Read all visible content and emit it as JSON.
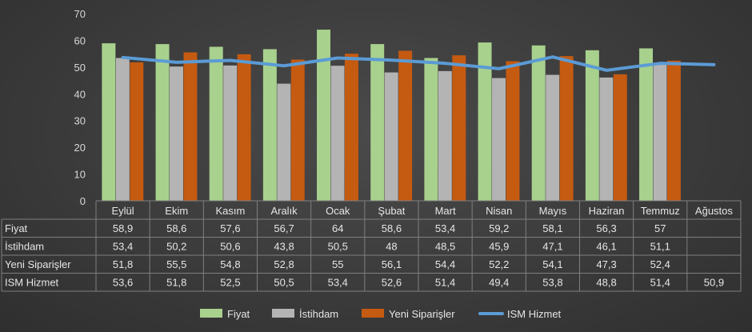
{
  "chart_data": {
    "type": "bar",
    "title": "",
    "xlabel": "",
    "ylabel": "",
    "ylim": [
      0,
      70
    ],
    "yticks": [
      0,
      10,
      20,
      30,
      40,
      50,
      60,
      70
    ],
    "grid": false,
    "legend_position": "bottom",
    "categories": [
      "Eylül",
      "Ekim",
      "Kasım",
      "Aralık",
      "Ocak",
      "Şubat",
      "Mart",
      "Nisan",
      "Mayıs",
      "Haziran",
      "Temmuz",
      "Ağustos"
    ],
    "series": [
      {
        "name": "Fiyat",
        "kind": "bar",
        "color": "#a9d18e",
        "values": [
          58.9,
          58.6,
          57.6,
          56.7,
          64,
          58.6,
          53.4,
          59.2,
          58.1,
          56.3,
          57,
          null
        ],
        "labels": [
          "58,9",
          "58,6",
          "57,6",
          "56,7",
          "64",
          "58,6",
          "53,4",
          "59,2",
          "58,1",
          "56,3",
          "57",
          ""
        ]
      },
      {
        "name": "İstihdam",
        "kind": "bar",
        "color": "#b4b4b4",
        "values": [
          53.4,
          50.2,
          50.6,
          43.8,
          50.5,
          48,
          48.5,
          45.9,
          47.1,
          46.1,
          51.1,
          null
        ],
        "labels": [
          "53,4",
          "50,2",
          "50,6",
          "43,8",
          "50,5",
          "48",
          "48,5",
          "45,9",
          "47,1",
          "46,1",
          "51,1",
          ""
        ]
      },
      {
        "name": "Yeni Siparişler",
        "kind": "bar",
        "color": "#c55a11",
        "values": [
          51.8,
          55.5,
          54.8,
          52.8,
          55,
          56.1,
          54.4,
          52.2,
          54.1,
          47.3,
          52.4,
          null
        ],
        "labels": [
          "51,8",
          "55,5",
          "54,8",
          "52,8",
          "55",
          "56,1",
          "54,4",
          "52,2",
          "54,1",
          "47,3",
          "52,4",
          ""
        ]
      },
      {
        "name": "ISM Hizmet",
        "kind": "line",
        "color": "#5b9bd5",
        "values": [
          53.6,
          51.8,
          52.5,
          50.5,
          53.4,
          52.6,
          51.4,
          49.4,
          53.8,
          48.8,
          51.4,
          50.9
        ],
        "labels": [
          "53,6",
          "51,8",
          "52,5",
          "50,5",
          "53,4",
          "52,6",
          "51,4",
          "49,4",
          "53,8",
          "48,8",
          "51,4",
          "50,9"
        ]
      }
    ]
  }
}
